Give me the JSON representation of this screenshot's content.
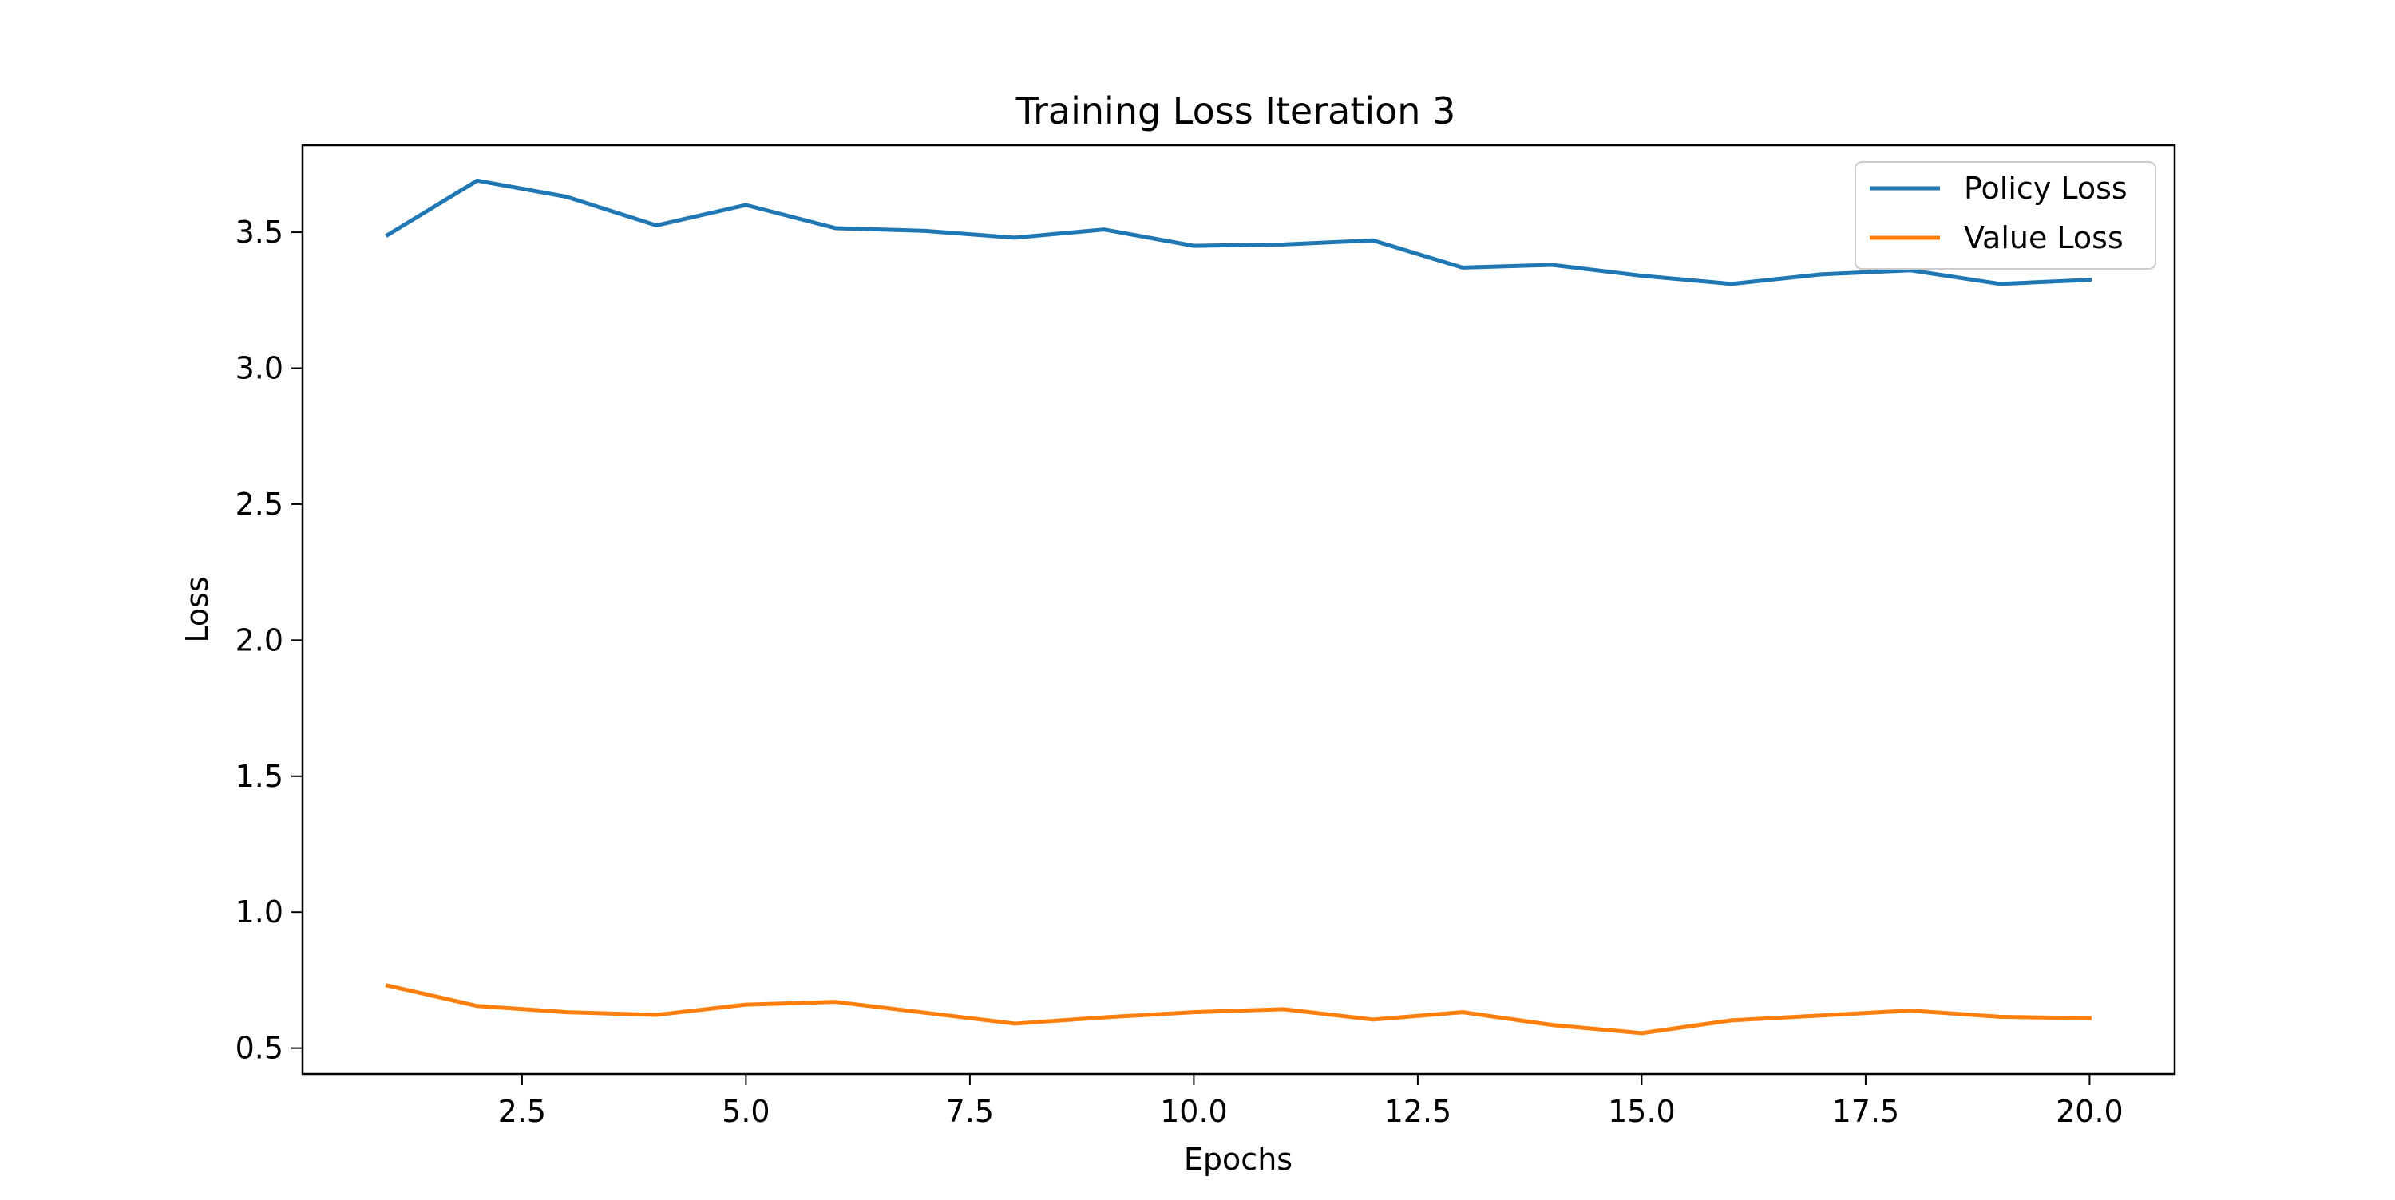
{
  "chart_data": {
    "type": "line",
    "title": "Training Loss Iteration 3",
    "xlabel": "Epochs",
    "ylabel": "Loss",
    "xlim": [
      0.05,
      20.95
    ],
    "ylim": [
      0.405,
      3.82
    ],
    "xticks": [
      2.5,
      5.0,
      7.5,
      10.0,
      12.5,
      15.0,
      17.5,
      20.0
    ],
    "xtick_labels": [
      "2.5",
      "5.0",
      "7.5",
      "10.0",
      "12.5",
      "15.0",
      "17.5",
      "20.0"
    ],
    "yticks": [
      0.5,
      1.0,
      1.5,
      2.0,
      2.5,
      3.0,
      3.5
    ],
    "ytick_labels": [
      "0.5",
      "1.0",
      "1.5",
      "2.0",
      "2.5",
      "3.0",
      "3.5"
    ],
    "grid": false,
    "legend_position": "top-right",
    "x": [
      1,
      2,
      3,
      4,
      5,
      6,
      7,
      8,
      9,
      10,
      11,
      12,
      13,
      14,
      15,
      16,
      17,
      18,
      19,
      20
    ],
    "series": [
      {
        "name": "Policy Loss",
        "color": "#1f77b4",
        "values": [
          3.49,
          3.69,
          3.63,
          3.525,
          3.6,
          3.515,
          3.505,
          3.48,
          3.51,
          3.45,
          3.455,
          3.47,
          3.37,
          3.38,
          3.34,
          3.31,
          3.345,
          3.36,
          3.31,
          3.325
        ]
      },
      {
        "name": "Value Loss",
        "color": "#ff7f0e",
        "values": [
          0.73,
          0.655,
          0.632,
          0.622,
          0.66,
          0.67,
          0.63,
          0.59,
          0.613,
          0.632,
          0.643,
          0.605,
          0.632,
          0.585,
          0.555,
          0.602,
          0.62,
          0.638,
          0.615,
          0.61
        ]
      }
    ]
  }
}
